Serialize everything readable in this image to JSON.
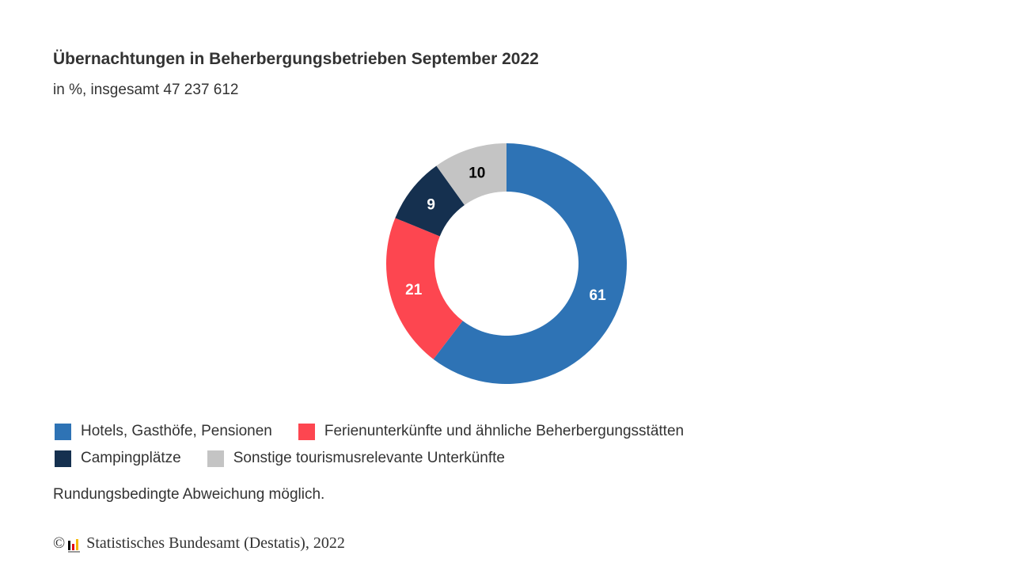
{
  "title": "Übernachtungen in Beherbergungsbetrieben September 2022",
  "subtitle": "in %, insgesamt 47 237 612",
  "chart_data": {
    "type": "pie",
    "variant": "donut",
    "title": "Übernachtungen in Beherbergungsbetrieben September 2022",
    "subtitle": "in %, insgesamt 47 237 612",
    "categories": [
      "Hotels, Gasthöfe, Pensionen",
      "Ferienunterkünfte und ähnliche Beherbergungsstätten",
      "Campingplätze",
      "Sonstige tourismusrelevante Unterkünfte"
    ],
    "values": [
      61,
      21,
      9,
      10
    ],
    "labels": [
      "61",
      "21",
      "9",
      "10"
    ],
    "colors": [
      "#2e73b5",
      "#fd4650",
      "#15304f",
      "#c4c4c4"
    ],
    "label_colors": [
      "#ffffff",
      "#ffffff",
      "#ffffff",
      "#000000"
    ],
    "legend_position": "bottom-left"
  },
  "legend": [
    "Hotels, Gasthöfe, Pensionen",
    "Ferienunterkünfte und ähnliche Beherbergungsstätten",
    "Campingplätze",
    "Sonstige tourismusrelevante Unterkünfte"
  ],
  "note": "Rundungsbedingte Abweichung möglich.",
  "source": {
    "copyright": "©",
    "text": "Statistisches Bundesamt (Destatis), 2022"
  }
}
